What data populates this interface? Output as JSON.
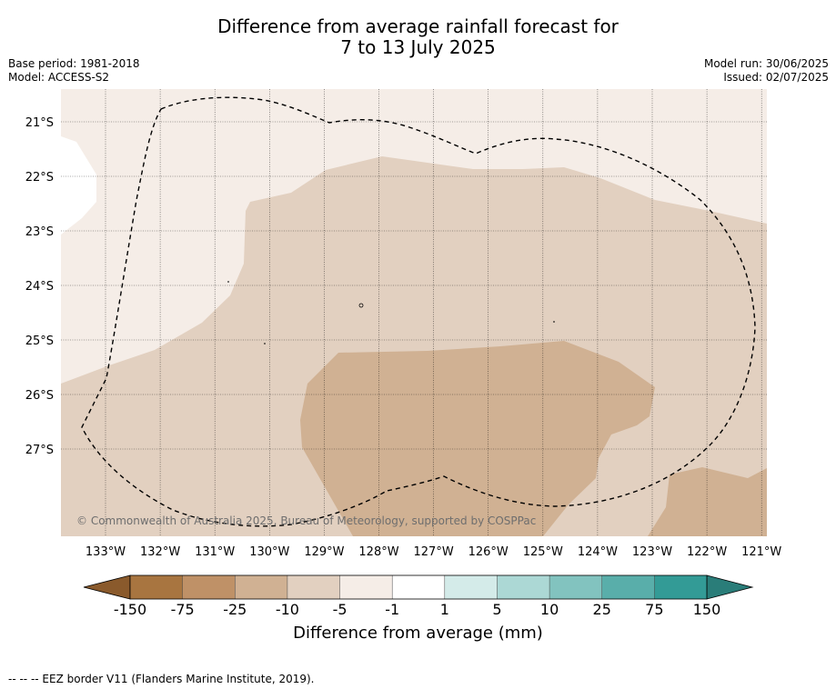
{
  "title": {
    "line1": "Difference from average rainfall forecast for",
    "line2": "7 to 13 July 2025"
  },
  "meta": {
    "base_period": "Base period: 1981-2018",
    "model": "Model: ACCESS-S2",
    "model_run": "Model run: 30/06/2025",
    "issued": "Issued: 02/07/2025"
  },
  "map": {
    "lat_labels": [
      "21°S",
      "22°S",
      "23°S",
      "24°S",
      "25°S",
      "26°S",
      "27°S"
    ],
    "lon_labels": [
      "133°W",
      "132°W",
      "131°W",
      "130°W",
      "129°W",
      "128°W",
      "127°W",
      "126°W",
      "125°W",
      "124°W",
      "123°W",
      "122°W",
      "121°W"
    ],
    "copyright": "© Commonwealth of Australia 2025, Bureau of Meteorology, supported by COSPPac",
    "colors": {
      "minus10_to_minus5": "#e2d0c0",
      "minus25_to_minus10": "#d0b193",
      "minus5_to_minus1": "#f5ede7"
    }
  },
  "colorbar": {
    "ticks": [
      "-150",
      "-75",
      "-25",
      "-10",
      "-5",
      "-1",
      "1",
      "5",
      "10",
      "25",
      "75",
      "150"
    ],
    "colors": [
      "#a87540",
      "#bf9167",
      "#d0b193",
      "#e2d0c0",
      "#f5ede7",
      "#ffffff",
      "#d4ebe9",
      "#acd8d5",
      "#82c3bf",
      "#59aeaa",
      "#339b96"
    ],
    "extend_low_color": "#8a5a2c",
    "extend_high_color": "#2a7d79",
    "title": "Difference from average (mm)"
  },
  "footnote": "--  --  -- EEZ border V11 (Flanders Marine Institute, 2019)."
}
